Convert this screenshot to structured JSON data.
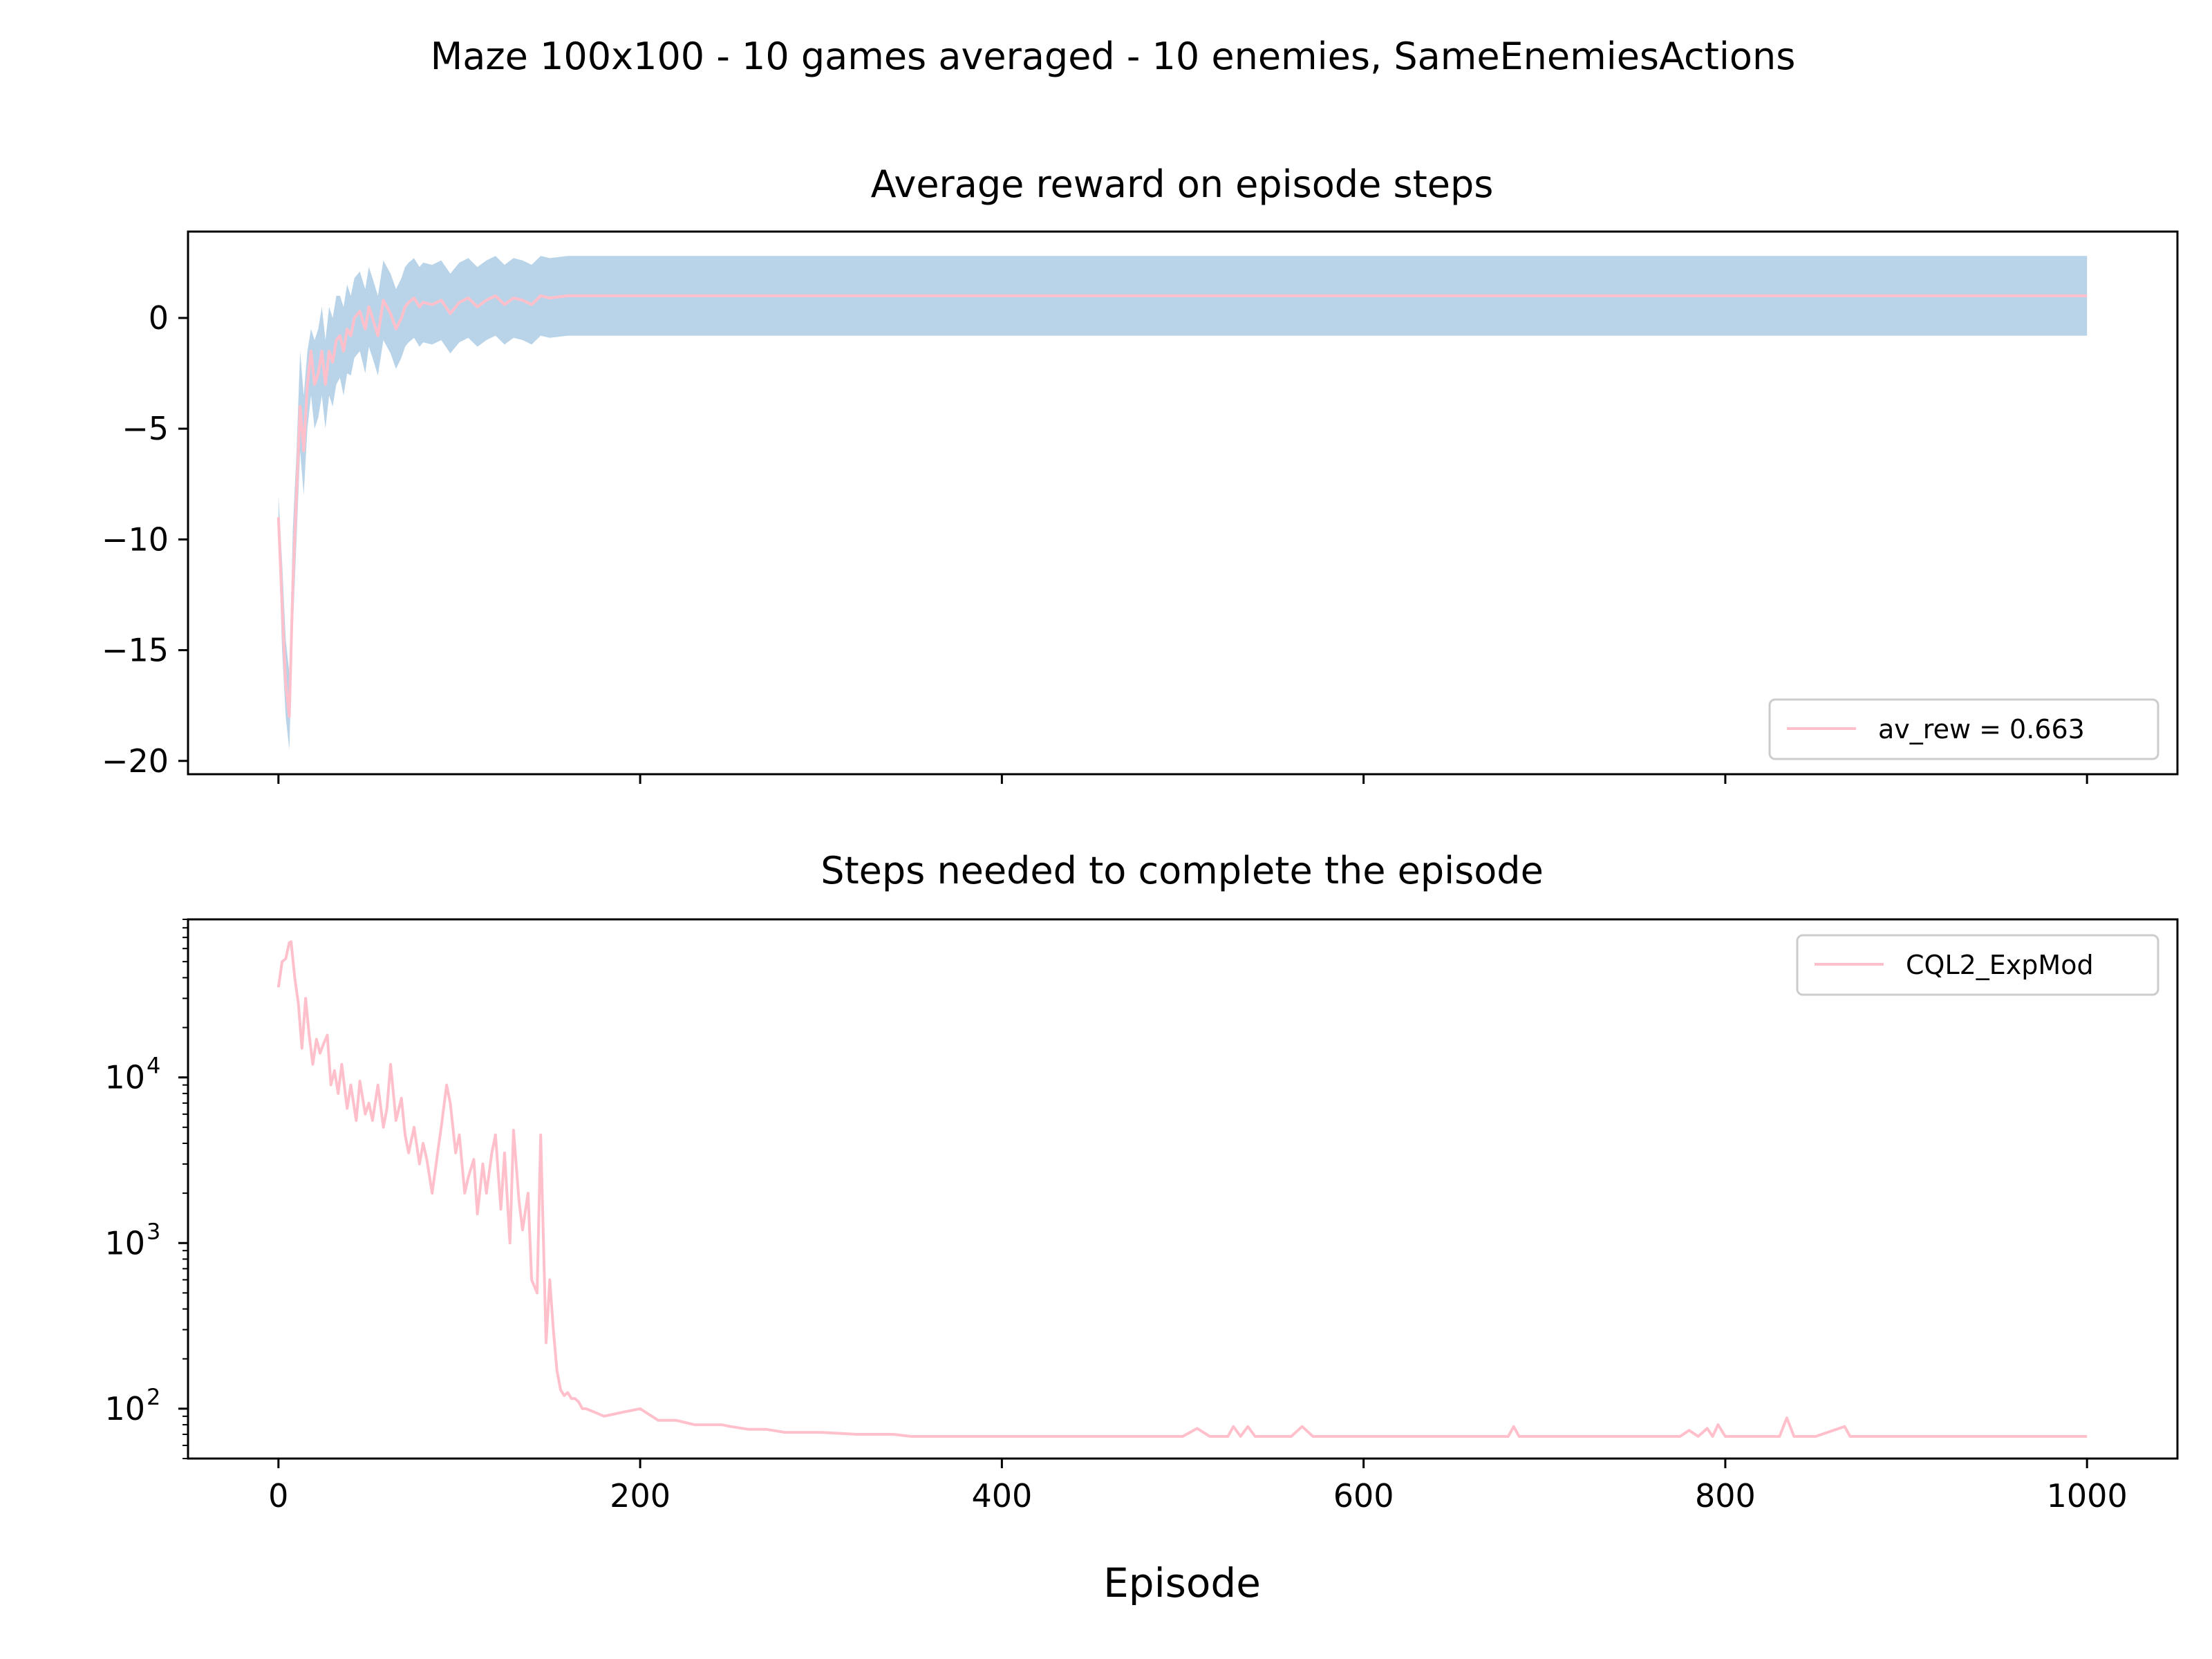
{
  "figure": {
    "suptitle": "Maze 100x100 - 10 games averaged - 10 enemies, SameEnemiesActions",
    "xlabel": "Episode"
  },
  "colors": {
    "line": "#ffc0cb",
    "band": "#b9d4e8",
    "axes": "#000000",
    "legend_border": "#cccccc"
  },
  "chart_data": [
    {
      "type": "line",
      "title": "Average reward on episode steps",
      "xlabel": "",
      "ylabel": "",
      "xlim": [
        -50,
        1050
      ],
      "ylim": [
        -20.6,
        3.9
      ],
      "xticks": [
        0,
        200,
        400,
        600,
        800,
        1000
      ],
      "xticklabels_visible": false,
      "yticks": [
        0,
        -5,
        -10,
        -15,
        -20
      ],
      "yticklabels": [
        "0",
        "−5",
        "−10",
        "−15",
        "−20"
      ],
      "legend": {
        "location": "lower-right",
        "entries": [
          "av_rew = 0.663"
        ]
      },
      "grid": false,
      "series": [
        {
          "name": "av_rew = 0.663",
          "kind": "line",
          "x": [
            0,
            2,
            4,
            6,
            8,
            10,
            12,
            14,
            16,
            18,
            20,
            22,
            24,
            26,
            28,
            30,
            32,
            34,
            36,
            38,
            40,
            42,
            45,
            48,
            50,
            52,
            55,
            58,
            60,
            62,
            65,
            68,
            70,
            72,
            75,
            78,
            80,
            85,
            90,
            95,
            100,
            105,
            110,
            115,
            120,
            125,
            130,
            135,
            140,
            145,
            150,
            160,
            180,
            200,
            1000
          ],
          "y": [
            -9,
            -13,
            -16.5,
            -18,
            -12,
            -8,
            -4,
            -6,
            -3,
            -1.5,
            -3,
            -2.5,
            -1.5,
            -3,
            -1.5,
            -2,
            -1,
            -0.8,
            -1.5,
            -0.5,
            -0.8,
            0,
            0.3,
            -0.5,
            0.5,
            0,
            -0.8,
            0.8,
            0.5,
            0.2,
            -0.5,
            0,
            0.5,
            0.7,
            0.9,
            0.5,
            0.7,
            0.6,
            0.8,
            0.2,
            0.7,
            0.9,
            0.5,
            0.8,
            1.0,
            0.6,
            0.9,
            0.8,
            0.6,
            1.0,
            0.9,
            1.0,
            1.0,
            1.0,
            1.0
          ]
        },
        {
          "name": "",
          "kind": "band",
          "x": [
            0,
            2,
            4,
            6,
            8,
            10,
            12,
            14,
            16,
            18,
            20,
            22,
            24,
            26,
            28,
            30,
            32,
            34,
            36,
            38,
            40,
            42,
            45,
            48,
            50,
            52,
            55,
            58,
            60,
            62,
            65,
            68,
            70,
            72,
            75,
            78,
            80,
            85,
            90,
            95,
            100,
            105,
            110,
            115,
            120,
            125,
            130,
            135,
            140,
            145,
            150,
            160,
            180,
            200,
            1000
          ],
          "lower": [
            -10,
            -15,
            -18,
            -19.5,
            -14,
            -10,
            -6,
            -8,
            -5,
            -3.5,
            -5,
            -4.5,
            -3.5,
            -5,
            -3.5,
            -4,
            -3,
            -2.7,
            -3.5,
            -2.5,
            -2.6,
            -1.8,
            -1.5,
            -2.5,
            -1.3,
            -1.8,
            -2.6,
            -1.0,
            -1.3,
            -1.6,
            -2.3,
            -1.8,
            -1.3,
            -1.1,
            -0.9,
            -1.3,
            -1.1,
            -1.2,
            -1.0,
            -1.6,
            -1.1,
            -0.9,
            -1.3,
            -1.0,
            -0.8,
            -1.2,
            -0.9,
            -1.0,
            -1.2,
            -0.8,
            -0.9,
            -0.8,
            -0.8,
            -0.8,
            -0.8
          ],
          "upper": [
            -8,
            -11,
            -14.5,
            -16,
            -9.5,
            -6,
            -1.5,
            -3.5,
            -1.5,
            -0.5,
            -1,
            -0.5,
            0.5,
            -1,
            0.5,
            0,
            1,
            1.0,
            0.5,
            1.5,
            1.0,
            1.8,
            2.1,
            1.3,
            2.3,
            1.8,
            1.0,
            2.6,
            2.3,
            2.0,
            1.3,
            1.8,
            2.3,
            2.5,
            2.7,
            2.3,
            2.5,
            2.4,
            2.6,
            2.0,
            2.5,
            2.7,
            2.3,
            2.6,
            2.8,
            2.4,
            2.7,
            2.6,
            2.4,
            2.8,
            2.7,
            2.8,
            2.8,
            2.8,
            2.8
          ]
        }
      ]
    },
    {
      "type": "line",
      "title": "Steps needed to complete the episode",
      "xlabel": "Episode",
      "ylabel": "",
      "yscale": "log",
      "xlim": [
        -50,
        1050
      ],
      "ylim": [
        50,
        90000
      ],
      "xticks": [
        0,
        200,
        400,
        600,
        800,
        1000
      ],
      "xticklabels": [
        "0",
        "200",
        "400",
        "600",
        "800",
        "1000"
      ],
      "yticks": [
        100,
        1000,
        10000
      ],
      "yticklabel_base": "10",
      "yticklabel_exponents": [
        "2",
        "3",
        "4"
      ],
      "legend": {
        "location": "upper-right",
        "entries": [
          "CQL2_ExpMod"
        ]
      },
      "grid": false,
      "series": [
        {
          "name": "CQL2_ExpMod",
          "x": [
            0,
            2,
            4,
            6,
            7,
            9,
            11,
            13,
            15,
            17,
            19,
            21,
            23,
            25,
            27,
            29,
            31,
            33,
            35,
            38,
            40,
            43,
            45,
            48,
            50,
            52,
            55,
            58,
            60,
            62,
            65,
            68,
            70,
            72,
            75,
            78,
            80,
            82,
            85,
            88,
            90,
            93,
            95,
            98,
            100,
            103,
            105,
            108,
            110,
            113,
            115,
            118,
            120,
            123,
            125,
            128,
            130,
            133,
            135,
            138,
            140,
            143,
            145,
            148,
            150,
            152,
            154,
            156,
            158,
            160,
            162,
            164,
            166,
            168,
            170,
            175,
            180,
            190,
            200,
            210,
            220,
            230,
            240,
            245,
            250,
            260,
            265,
            270,
            280,
            300,
            320,
            340,
            350,
            380,
            400,
            450,
            500,
            508,
            515,
            525,
            528,
            532,
            536,
            540,
            560,
            566,
            572,
            600,
            650,
            680,
            683,
            686,
            700,
            750,
            775,
            780,
            785,
            790,
            793,
            796,
            800,
            830,
            834,
            838,
            850,
            866,
            869,
            872,
            900,
            950,
            1000
          ],
          "y": [
            35000,
            50000,
            52000,
            65000,
            66000,
            40000,
            28000,
            15000,
            30000,
            18000,
            12000,
            17000,
            14000,
            16000,
            18000,
            9000,
            11000,
            8000,
            12000,
            6500,
            9000,
            5500,
            9500,
            6000,
            7000,
            5500,
            9000,
            5000,
            6500,
            12000,
            5500,
            7500,
            4500,
            3500,
            5000,
            3000,
            4000,
            3200,
            2000,
            3500,
            5000,
            9000,
            7000,
            3500,
            4500,
            2000,
            2500,
            3200,
            1500,
            3000,
            2000,
            3500,
            4500,
            1600,
            3500,
            1000,
            4800,
            1800,
            1200,
            2000,
            600,
            500,
            4500,
            250,
            600,
            300,
            170,
            130,
            120,
            125,
            115,
            115,
            110,
            100,
            100,
            95,
            90,
            95,
            100,
            85,
            85,
            80,
            80,
            80,
            78,
            75,
            75,
            75,
            72,
            72,
            70,
            70,
            68,
            68,
            68,
            68,
            68,
            76,
            68,
            68,
            78,
            68,
            78,
            68,
            68,
            78,
            68,
            68,
            68,
            68,
            78,
            68,
            68,
            68,
            68,
            74,
            68,
            76,
            68,
            80,
            68,
            68,
            88,
            68,
            68,
            78,
            68,
            68,
            68,
            68,
            68
          ]
        }
      ]
    }
  ]
}
